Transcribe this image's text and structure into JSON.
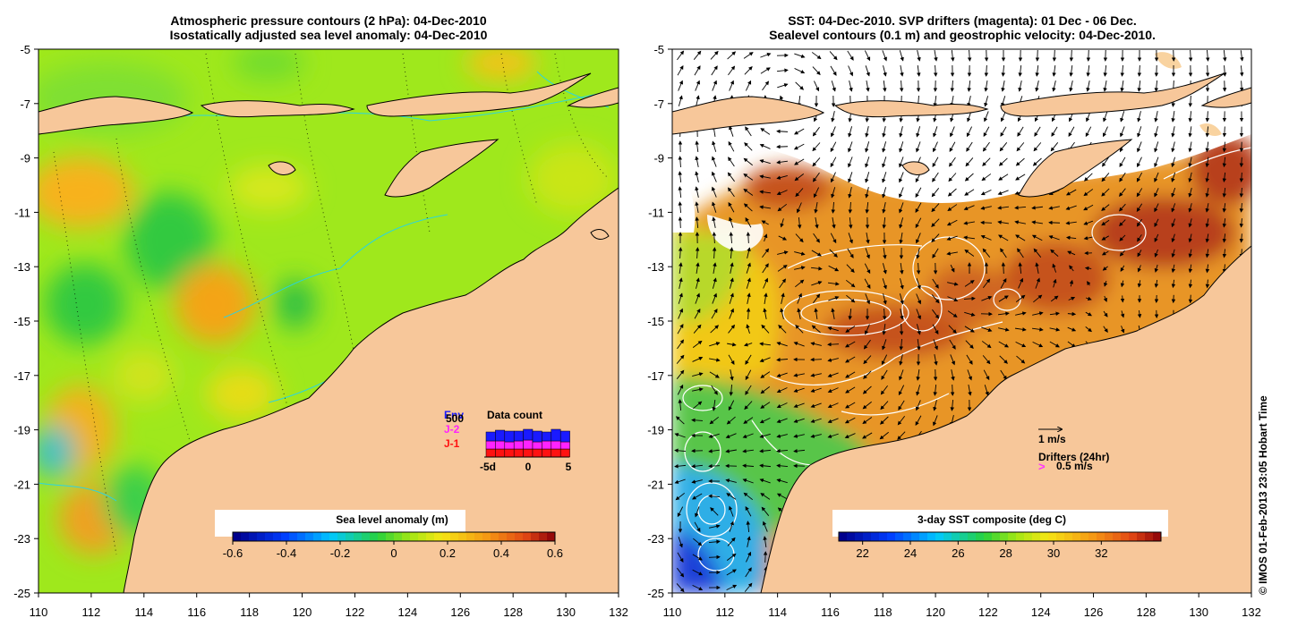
{
  "left_panel": {
    "title_line1": "Atmospheric pressure contours (2 hPa): 04-Dec-2010",
    "title_line2": "Isostatically adjusted sea level anomaly: 04-Dec-2010",
    "colorbar": {
      "label": "Sea level anomaly (m)",
      "range": [
        -0.6,
        0.6
      ],
      "ticks": [
        "-0.6",
        "-0.4",
        "-0.2",
        "0",
        "0.2",
        "0.4",
        "0.6"
      ]
    },
    "data_count": {
      "title": "Data count",
      "missions": [
        "Env",
        "J-2",
        "J-1"
      ],
      "mission_colors": [
        "#1a1aff",
        "#ff22ff",
        "#ff1111"
      ],
      "y_tick": "500",
      "x_ticks": [
        "-5d",
        "0",
        "5"
      ]
    }
  },
  "right_panel": {
    "title_line1": "SST: 04-Dec-2010. SVP drifters (magenta): 01 Dec - 06 Dec.",
    "title_line2": "Sealevel contours (0.1 m) and geostrophic velocity: 04-Dec-2010.",
    "colorbar": {
      "label": "3-day SST composite (deg C)",
      "range": [
        21,
        34.5
      ],
      "ticks": [
        "22",
        "24",
        "26",
        "28",
        "30",
        "32"
      ]
    },
    "velocity_key": "1 m/s",
    "drifters_label": "Drifters (24hr)",
    "drifter_speed": "0.5 m/s",
    "drifter_symbol": ">"
  },
  "axes": {
    "x_ticks": [
      "110",
      "112",
      "114",
      "116",
      "118",
      "120",
      "122",
      "124",
      "126",
      "128",
      "130",
      "132"
    ],
    "y_ticks": [
      "-5",
      "-7",
      "-9",
      "-11",
      "-13",
      "-15",
      "-17",
      "-19",
      "-21",
      "-23",
      "-25"
    ],
    "lon_range": [
      110,
      132
    ],
    "lat_range": [
      -25,
      -5
    ]
  },
  "credit": "© IMOS 01-Feb-2013 23:05 Hobart Time",
  "colors": {
    "land": "#f7c79a",
    "coast": "#000000",
    "bathy": "#22d4ee",
    "sst_contour": "#ffffff",
    "drifter": "#ff33ff"
  }
}
